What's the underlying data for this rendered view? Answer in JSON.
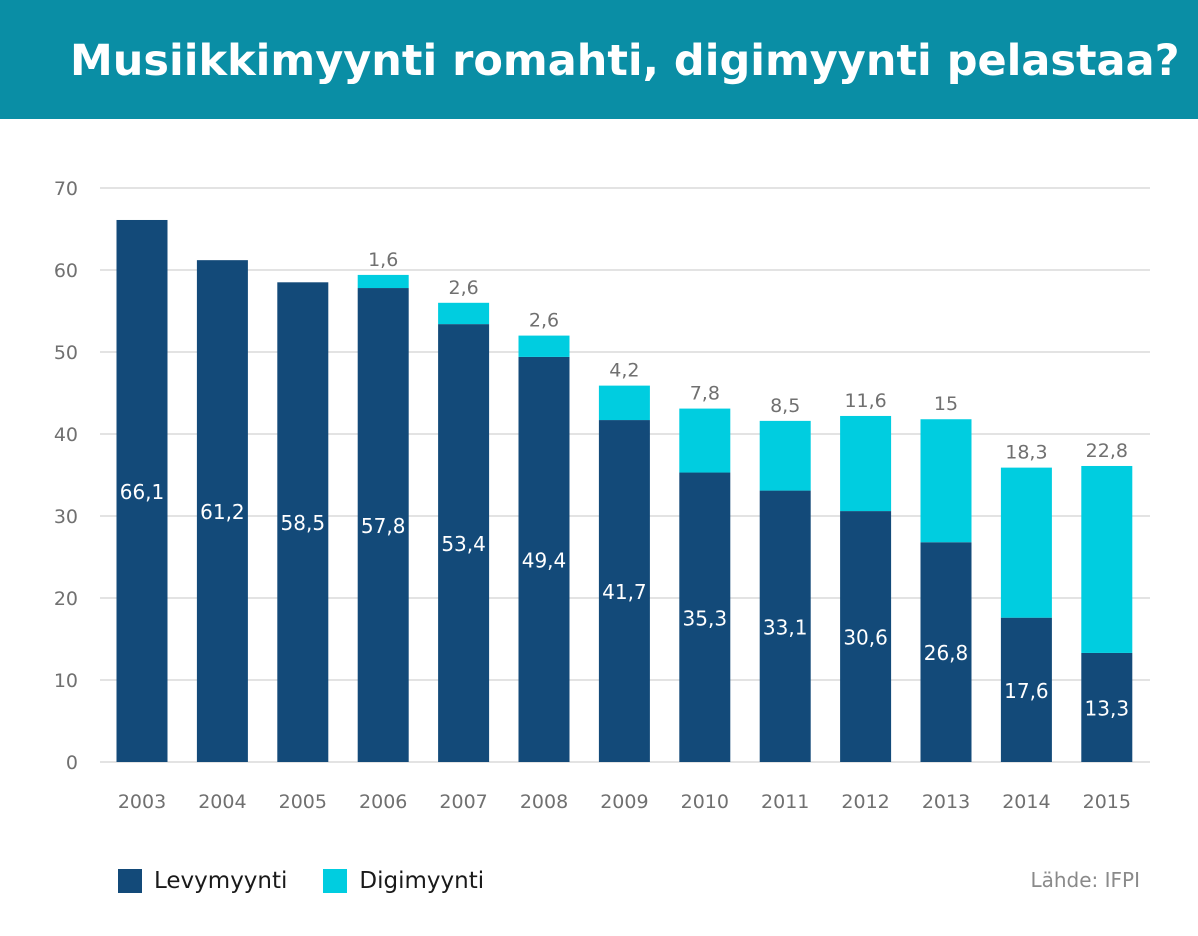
{
  "header": {
    "title": "Musiikkimyynti romahti, digimyynti pelastaa?"
  },
  "colors": {
    "header_bg": "#0a8ea5",
    "physical": "#134a79",
    "digital": "#00cde0",
    "grid": "#d2d2d2",
    "axis_text": "#707070"
  },
  "chart_data": {
    "type": "bar",
    "stacked": true,
    "categories": [
      "2003",
      "2004",
      "2005",
      "2006",
      "2007",
      "2008",
      "2009",
      "2010",
      "2011",
      "2012",
      "2013",
      "2014",
      "2015"
    ],
    "series": [
      {
        "name": "Levymyynti",
        "values": [
          66.1,
          61.2,
          58.5,
          57.8,
          53.4,
          49.4,
          41.7,
          35.3,
          33.1,
          30.6,
          26.8,
          17.6,
          13.3
        ],
        "labels": [
          "66,1",
          "61,2",
          "58,5",
          "57,8",
          "53,4",
          "49,4",
          "41,7",
          "35,3",
          "33,1",
          "30,6",
          "26,8",
          "17,6",
          "13,3"
        ]
      },
      {
        "name": "Digimyynti",
        "values": [
          null,
          null,
          null,
          1.6,
          2.6,
          2.6,
          4.2,
          7.8,
          8.5,
          11.6,
          15,
          18.3,
          22.8
        ],
        "labels": [
          "",
          "",
          "",
          "1,6",
          "2,6",
          "2,6",
          "4,2",
          "7,8",
          "8,5",
          "11,6",
          "15",
          "18,3",
          "22,8"
        ]
      }
    ],
    "yticks": [
      "0",
      "10",
      "20",
      "30",
      "40",
      "50",
      "60",
      "70"
    ],
    "ylim": [
      0,
      70
    ],
    "grid": true,
    "legend_position": "bottom-left"
  },
  "legend": {
    "items": [
      {
        "label": "Levymyynti",
        "color": "#134a79"
      },
      {
        "label": "Digimyynti",
        "color": "#00cde0"
      }
    ]
  },
  "source": "Lähde: IFPI"
}
